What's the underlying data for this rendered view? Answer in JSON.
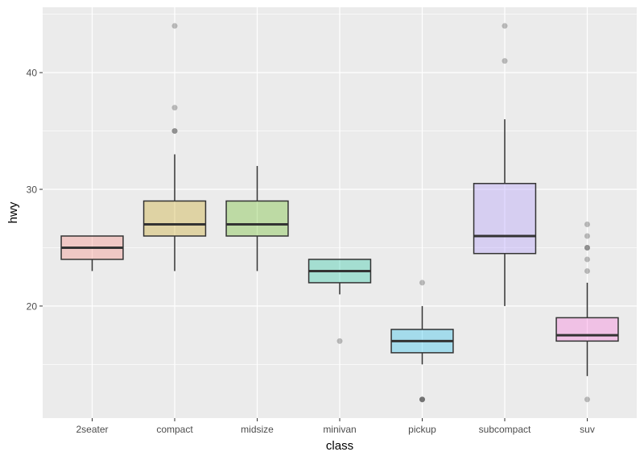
{
  "chart_data": {
    "type": "boxplot",
    "title": "",
    "xlabel": "class",
    "ylabel": "hwy",
    "ylim": [
      10.4,
      45.6
    ],
    "yticks": [
      20,
      30,
      40
    ],
    "grid": true,
    "fill_alpha": 0.3,
    "categories": [
      "2seater",
      "compact",
      "midsize",
      "minivan",
      "pickup",
      "subcompact",
      "suv"
    ],
    "colors": [
      "#F8766D",
      "#C49A00",
      "#53B400",
      "#00C094",
      "#00B6EB",
      "#A58AFF",
      "#FB61D7"
    ],
    "boxes": [
      {
        "lower": 23,
        "q1": 24,
        "median": 25,
        "q3": 26,
        "upper": 26,
        "outliers": []
      },
      {
        "lower": 23,
        "q1": 26,
        "median": 27,
        "q3": 29,
        "upper": 33,
        "outliers": [
          35,
          35,
          37,
          44
        ]
      },
      {
        "lower": 23,
        "q1": 26,
        "median": 27,
        "q3": 29,
        "upper": 32,
        "outliers": []
      },
      {
        "lower": 21,
        "q1": 22,
        "median": 23,
        "q3": 24,
        "upper": 24,
        "outliers": [
          17
        ]
      },
      {
        "lower": 15,
        "q1": 16,
        "median": 17,
        "q3": 18,
        "upper": 20,
        "outliers": [
          12,
          12,
          12,
          22
        ]
      },
      {
        "lower": 20,
        "q1": 24.5,
        "median": 26,
        "q3": 30.5,
        "upper": 36,
        "outliers": [
          41,
          44
        ]
      },
      {
        "lower": 14,
        "q1": 17,
        "median": 17.5,
        "q3": 19,
        "upper": 22,
        "outliers": [
          12,
          23,
          24,
          25,
          25,
          26,
          27
        ]
      }
    ]
  }
}
